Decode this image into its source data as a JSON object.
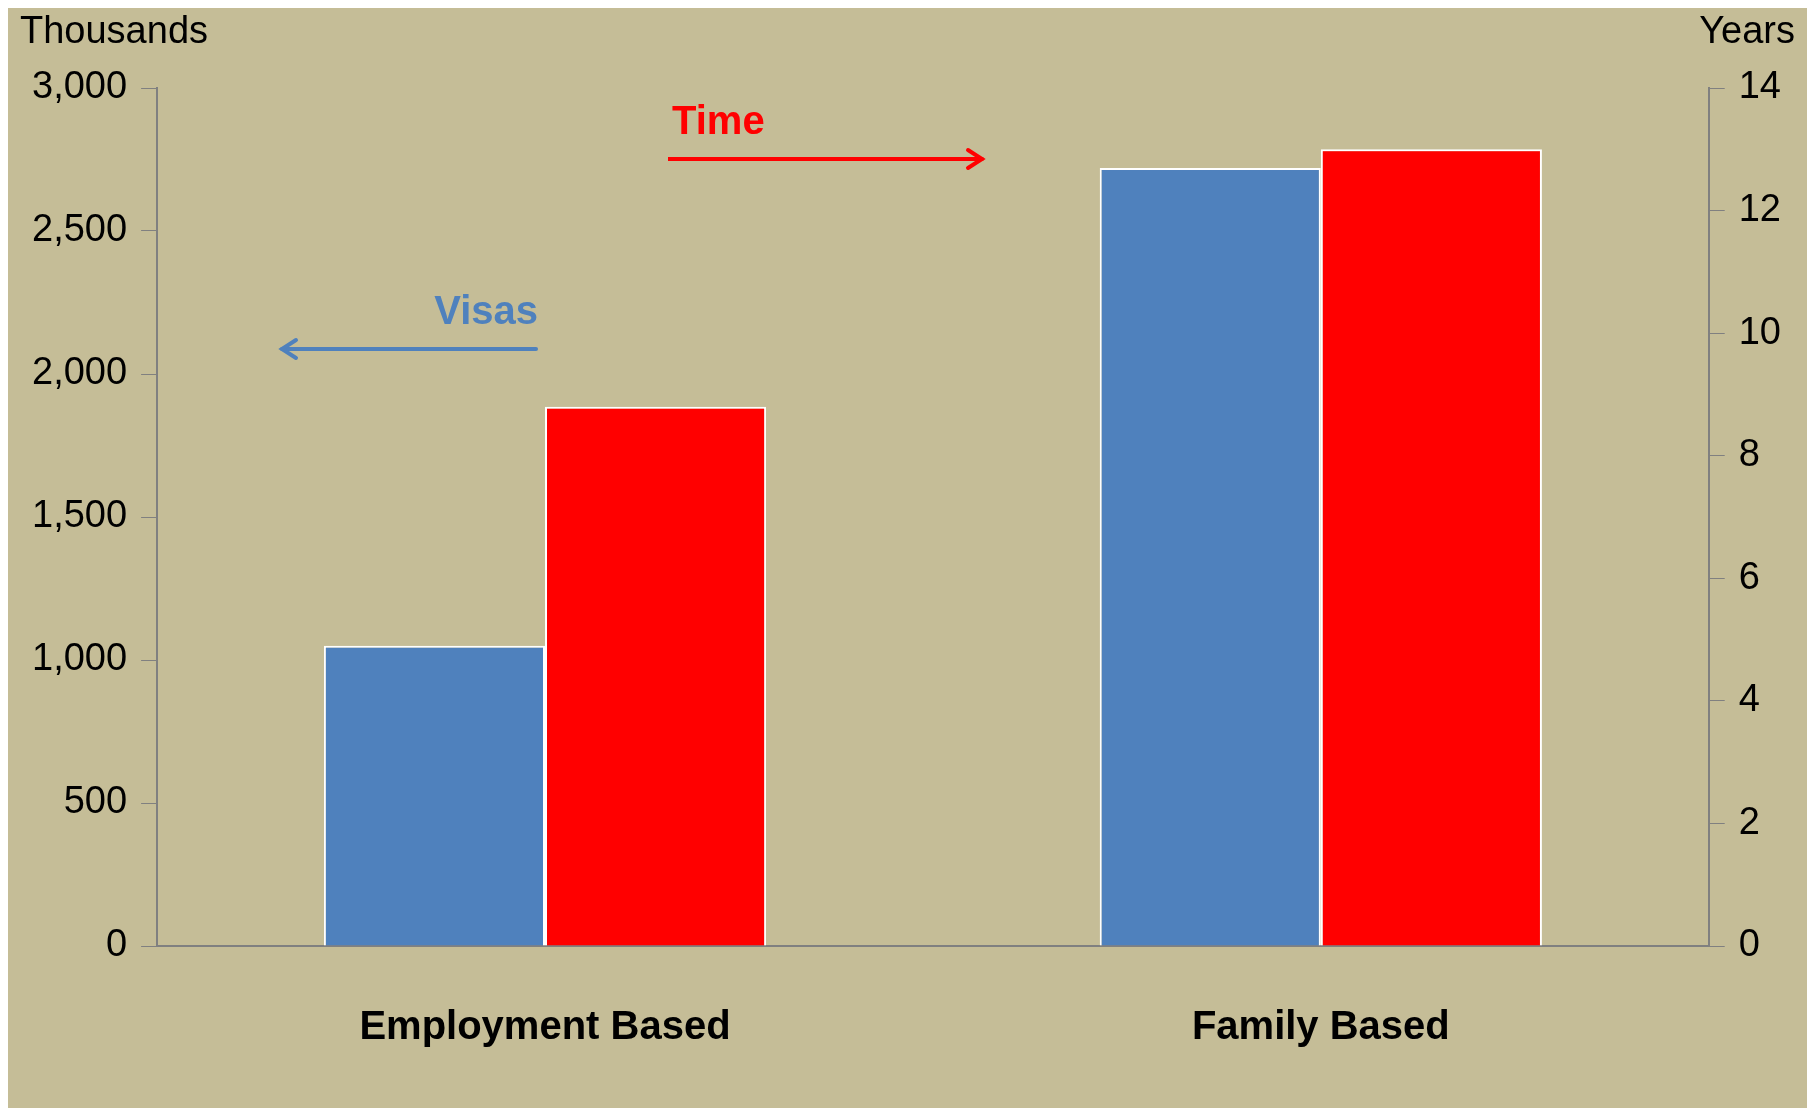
{
  "chart_data": {
    "type": "bar",
    "categories": [
      "Employment Based",
      "Family Based"
    ],
    "ylabel": "Thousands",
    "y2label": "Years",
    "ylim": [
      0,
      3000
    ],
    "yticks": [
      {
        "value": 0,
        "label": "0"
      },
      {
        "value": 500,
        "label": "500"
      },
      {
        "value": 1000,
        "label": "1,000"
      },
      {
        "value": 1500,
        "label": "1,500"
      },
      {
        "value": 2000,
        "label": "2,000"
      },
      {
        "value": 2500,
        "label": "2,500"
      },
      {
        "value": 3000,
        "label": "3,000"
      }
    ],
    "y2lim": [
      0,
      14
    ],
    "y2ticks": [
      0,
      2,
      4,
      6,
      8,
      10,
      12,
      14
    ],
    "grid": false,
    "legend": false,
    "series": [
      {
        "name": "Visas",
        "color": "#4f81bd",
        "values": [
          1050,
          2720
        ],
        "axis": "y"
      },
      {
        "name": "Time",
        "color": "#ff0000",
        "values": [
          8.8,
          13
        ],
        "axis": "y2"
      }
    ]
  }
}
